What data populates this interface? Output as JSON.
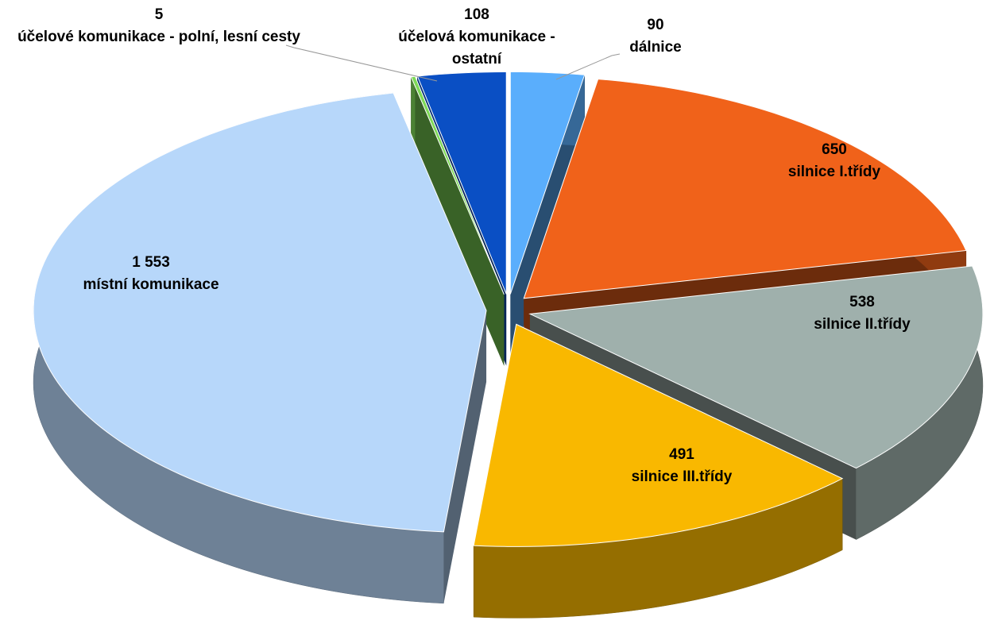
{
  "chart_data": {
    "type": "pie",
    "categories": [
      "dálnice",
      "silnice I.třídy",
      "silnice II.třídy",
      "silnice III.třídy",
      "místní komunikace",
      "účelové komunikace - polní, lesní cesty",
      "účelová komunikace - ostatní"
    ],
    "values": [
      90,
      650,
      538,
      491,
      1553,
      5,
      108
    ],
    "value_labels": [
      "90",
      "650",
      "538",
      "491",
      "1 553",
      "5",
      "108"
    ],
    "colors": [
      "#5aaefc",
      "#f0621a",
      "#9fb0ac",
      "#f9b800",
      "#b7d7fa",
      "#7ed957",
      "#0a4fc4"
    ]
  }
}
